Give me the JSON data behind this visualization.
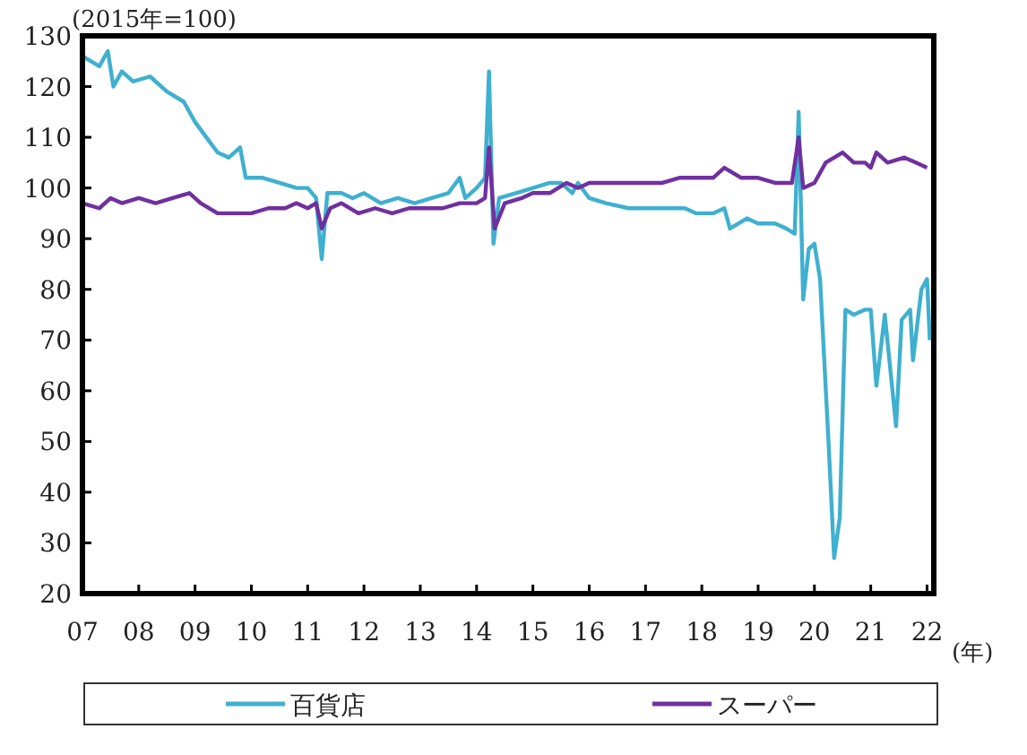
{
  "chart_data": {
    "type": "line",
    "ylabel": "(2015年=100)",
    "xlabel": "(年)",
    "xlim": [
      2007,
      2022.12
    ],
    "ylim": [
      20,
      130
    ],
    "xticks": [
      {
        "value": 2007,
        "label": "07"
      },
      {
        "value": 2008,
        "label": "08"
      },
      {
        "value": 2009,
        "label": "09"
      },
      {
        "value": 2010,
        "label": "10"
      },
      {
        "value": 2011,
        "label": "11"
      },
      {
        "value": 2012,
        "label": "12"
      },
      {
        "value": 2013,
        "label": "13"
      },
      {
        "value": 2014,
        "label": "14"
      },
      {
        "value": 2015,
        "label": "15"
      },
      {
        "value": 2016,
        "label": "16"
      },
      {
        "value": 2017,
        "label": "17"
      },
      {
        "value": 2018,
        "label": "18"
      },
      {
        "value": 2019,
        "label": "19"
      },
      {
        "value": 2020,
        "label": "20"
      },
      {
        "value": 2021,
        "label": "21"
      },
      {
        "value": 2022,
        "label": "22"
      }
    ],
    "yticks": [
      20,
      30,
      40,
      50,
      60,
      70,
      80,
      90,
      100,
      110,
      120,
      130
    ],
    "legend": "bottom",
    "series": [
      {
        "name": "百貨店",
        "color": "#3fb0cf",
        "x": [
          2007.0,
          2007.3,
          2007.45,
          2007.55,
          2007.7,
          2007.9,
          2008.2,
          2008.5,
          2008.8,
          2009.0,
          2009.2,
          2009.4,
          2009.6,
          2009.8,
          2009.9,
          2010.2,
          2010.5,
          2010.8,
          2011.0,
          2011.15,
          2011.25,
          2011.35,
          2011.6,
          2011.8,
          2012.0,
          2012.3,
          2012.6,
          2012.9,
          2013.2,
          2013.5,
          2013.7,
          2013.8,
          2014.0,
          2014.15,
          2014.22,
          2014.3,
          2014.4,
          2014.7,
          2015.0,
          2015.3,
          2015.5,
          2015.7,
          2015.8,
          2016.0,
          2016.3,
          2016.7,
          2017.0,
          2017.3,
          2017.7,
          2017.9,
          2018.2,
          2018.4,
          2018.5,
          2018.8,
          2019.0,
          2019.3,
          2019.5,
          2019.65,
          2019.72,
          2019.8,
          2019.9,
          2020.0,
          2020.1,
          2020.25,
          2020.35,
          2020.45,
          2020.55,
          2020.7,
          2020.9,
          2021.0,
          2021.1,
          2021.25,
          2021.45,
          2021.55,
          2021.7,
          2021.75,
          2021.9,
          2022.0,
          2022.05
        ],
        "values": [
          126,
          124,
          127,
          120,
          123,
          121,
          122,
          119,
          117,
          113,
          110,
          107,
          106,
          108,
          102,
          102,
          101,
          100,
          100,
          98,
          86,
          99,
          99,
          98,
          99,
          97,
          98,
          97,
          98,
          99,
          102,
          98,
          100,
          102,
          123,
          89,
          98,
          99,
          100,
          101,
          101,
          99,
          101,
          98,
          97,
          96,
          96,
          96,
          96,
          95,
          95,
          96,
          92,
          94,
          93,
          93,
          92,
          91,
          115,
          78,
          88,
          89,
          82,
          50,
          27,
          35,
          76,
          75,
          76,
          76,
          61,
          75,
          53,
          74,
          76,
          66,
          80,
          82,
          70
        ]
      },
      {
        "name": "スーパー",
        "color": "#7030a0",
        "x": [
          2007.0,
          2007.3,
          2007.5,
          2007.7,
          2008.0,
          2008.3,
          2008.6,
          2008.9,
          2009.1,
          2009.4,
          2009.7,
          2010.0,
          2010.3,
          2010.6,
          2010.8,
          2011.0,
          2011.15,
          2011.25,
          2011.4,
          2011.6,
          2011.9,
          2012.2,
          2012.5,
          2012.8,
          2013.1,
          2013.4,
          2013.7,
          2014.0,
          2014.15,
          2014.22,
          2014.32,
          2014.5,
          2014.8,
          2015.0,
          2015.3,
          2015.6,
          2015.8,
          2016.0,
          2016.4,
          2016.7,
          2017.0,
          2017.3,
          2017.6,
          2017.9,
          2018.2,
          2018.4,
          2018.7,
          2019.0,
          2019.3,
          2019.6,
          2019.72,
          2019.8,
          2020.0,
          2020.2,
          2020.5,
          2020.7,
          2020.9,
          2021.0,
          2021.1,
          2021.3,
          2021.6,
          2021.8,
          2022.0
        ],
        "values": [
          97,
          96,
          98,
          97,
          98,
          97,
          98,
          99,
          97,
          95,
          95,
          95,
          96,
          96,
          97,
          96,
          97,
          92,
          96,
          97,
          95,
          96,
          95,
          96,
          96,
          96,
          97,
          97,
          98,
          108,
          92,
          97,
          98,
          99,
          99,
          101,
          100,
          101,
          101,
          101,
          101,
          101,
          102,
          102,
          102,
          104,
          102,
          102,
          101,
          101,
          110,
          100,
          101,
          105,
          107,
          105,
          105,
          104,
          107,
          105,
          106,
          105,
          104
        ]
      }
    ]
  }
}
